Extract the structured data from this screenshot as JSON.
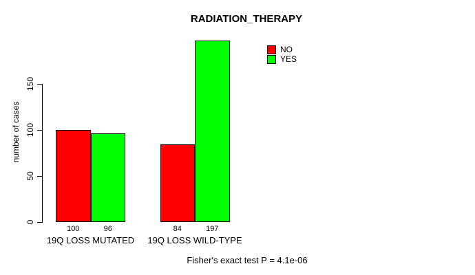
{
  "chart_data": {
    "type": "bar",
    "title": "RADIATION_THERAPY",
    "ylabel": "number of cases",
    "xlabel": "",
    "categories": [
      "19Q LOSS MUTATED",
      "19Q LOSS WILD-TYPE"
    ],
    "series": [
      {
        "name": "NO",
        "color": "#ff0000",
        "values": [
          100,
          84
        ]
      },
      {
        "name": "YES",
        "color": "#00ff00",
        "values": [
          96,
          197
        ]
      }
    ],
    "yticks": [
      0,
      50,
      100,
      150
    ],
    "ylim": [
      0,
      150
    ],
    "grid": false,
    "legend_position": "top-right",
    "bar_border_color": "#000000",
    "caption": "Fisher's exact test P = 4.1e-06"
  },
  "colors": {
    "no": "#ff0000",
    "yes": "#00ff00",
    "axis": "#000000",
    "background": "#ffffff"
  }
}
